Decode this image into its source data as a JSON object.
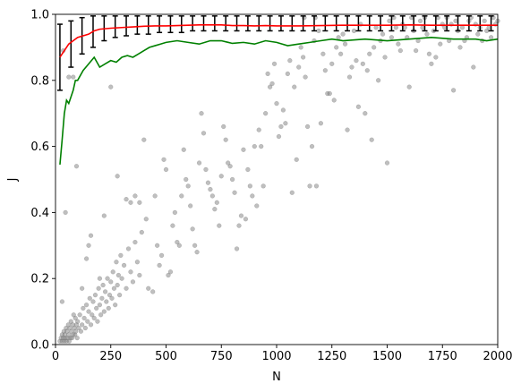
{
  "chart_data": {
    "type": "scatter",
    "xlabel": "N",
    "ylabel": "J",
    "xlim": [
      0,
      2000
    ],
    "ylim": [
      0.0,
      1.0
    ],
    "x_ticks": [
      0,
      250,
      500,
      750,
      1000,
      1250,
      1500,
      1750,
      2000
    ],
    "x_tick_labels": [
      "0",
      "250",
      "500",
      "750",
      "1000",
      "1250",
      "1500",
      "1750",
      "2000"
    ],
    "y_ticks": [
      0.0,
      0.2,
      0.4,
      0.6,
      0.8,
      1.0
    ],
    "y_tick_labels": [
      "0.0",
      "0.2",
      "0.4",
      "0.6",
      "0.8",
      "1.0"
    ],
    "grid": false,
    "colors": {
      "scatter": "#808080",
      "red_line": "#ff0000",
      "green_line": "#008000",
      "error_bars": "#000000"
    },
    "scatter_points": [
      [
        20,
        0.01
      ],
      [
        25,
        0.02
      ],
      [
        30,
        0.01
      ],
      [
        30,
        0.03
      ],
      [
        35,
        0.02
      ],
      [
        38,
        0.04
      ],
      [
        40,
        0.01
      ],
      [
        42,
        0.03
      ],
      [
        45,
        0.02
      ],
      [
        48,
        0.05
      ],
      [
        50,
        0.01
      ],
      [
        52,
        0.04
      ],
      [
        55,
        0.02
      ],
      [
        58,
        0.06
      ],
      [
        60,
        0.03
      ],
      [
        62,
        0.01
      ],
      [
        65,
        0.05
      ],
      [
        68,
        0.02
      ],
      [
        70,
        0.07
      ],
      [
        72,
        0.04
      ],
      [
        75,
        0.02
      ],
      [
        78,
        0.06
      ],
      [
        80,
        0.03
      ],
      [
        82,
        0.09
      ],
      [
        85,
        0.05
      ],
      [
        88,
        0.03
      ],
      [
        90,
        0.08
      ],
      [
        92,
        0.04
      ],
      [
        95,
        0.06
      ],
      [
        98,
        0.02
      ],
      [
        100,
        0.07
      ],
      [
        105,
        0.05
      ],
      [
        110,
        0.09
      ],
      [
        115,
        0.04
      ],
      [
        120,
        0.06
      ],
      [
        125,
        0.11
      ],
      [
        130,
        0.08
      ],
      [
        135,
        0.05
      ],
      [
        140,
        0.12
      ],
      [
        145,
        0.07
      ],
      [
        150,
        0.1
      ],
      [
        155,
        0.14
      ],
      [
        160,
        0.06
      ],
      [
        165,
        0.09
      ],
      [
        170,
        0.13
      ],
      [
        175,
        0.08
      ],
      [
        180,
        0.15
      ],
      [
        185,
        0.11
      ],
      [
        190,
        0.07
      ],
      [
        195,
        0.17
      ],
      [
        200,
        0.12
      ],
      [
        205,
        0.09
      ],
      [
        210,
        0.14
      ],
      [
        215,
        0.18
      ],
      [
        220,
        0.1
      ],
      [
        225,
        0.16
      ],
      [
        230,
        0.13
      ],
      [
        235,
        0.2
      ],
      [
        240,
        0.11
      ],
      [
        245,
        0.15
      ],
      [
        250,
        0.19
      ],
      [
        255,
        0.14
      ],
      [
        260,
        0.22
      ],
      [
        265,
        0.17
      ],
      [
        270,
        0.12
      ],
      [
        275,
        0.25
      ],
      [
        280,
        0.18
      ],
      [
        285,
        0.21
      ],
      [
        290,
        0.15
      ],
      [
        295,
        0.27
      ],
      [
        300,
        0.2
      ],
      [
        310,
        0.24
      ],
      [
        320,
        0.17
      ],
      [
        330,
        0.29
      ],
      [
        340,
        0.22
      ],
      [
        350,
        0.19
      ],
      [
        360,
        0.31
      ],
      [
        370,
        0.25
      ],
      [
        380,
        0.21
      ],
      [
        390,
        0.34
      ],
      [
        30,
        0.13
      ],
      [
        45,
        0.4
      ],
      [
        60,
        0.81
      ],
      [
        35,
        0.89
      ],
      [
        80,
        0.81
      ],
      [
        95,
        0.54
      ],
      [
        120,
        0.17
      ],
      [
        140,
        0.26
      ],
      [
        150,
        0.3
      ],
      [
        160,
        0.33
      ],
      [
        200,
        0.2
      ],
      [
        220,
        0.39
      ],
      [
        250,
        0.78
      ],
      [
        280,
        0.51
      ],
      [
        320,
        0.44
      ],
      [
        340,
        0.43
      ],
      [
        360,
        0.45
      ],
      [
        380,
        0.43
      ],
      [
        400,
        0.62
      ],
      [
        410,
        0.38
      ],
      [
        420,
        0.17
      ],
      [
        440,
        0.16
      ],
      [
        450,
        0.45
      ],
      [
        460,
        0.3
      ],
      [
        470,
        0.24
      ],
      [
        480,
        0.27
      ],
      [
        490,
        0.56
      ],
      [
        500,
        0.53
      ],
      [
        510,
        0.21
      ],
      [
        520,
        0.22
      ],
      [
        530,
        0.36
      ],
      [
        540,
        0.4
      ],
      [
        550,
        0.31
      ],
      [
        560,
        0.3
      ],
      [
        570,
        0.45
      ],
      [
        580,
        0.59
      ],
      [
        590,
        0.5
      ],
      [
        600,
        0.48
      ],
      [
        610,
        0.42
      ],
      [
        620,
        0.35
      ],
      [
        630,
        0.3
      ],
      [
        640,
        0.28
      ],
      [
        650,
        0.55
      ],
      [
        660,
        0.7
      ],
      [
        670,
        0.64
      ],
      [
        680,
        0.53
      ],
      [
        690,
        0.49
      ],
      [
        700,
        0.47
      ],
      [
        710,
        0.45
      ],
      [
        720,
        0.41
      ],
      [
        730,
        0.43
      ],
      [
        740,
        0.36
      ],
      [
        750,
        0.51
      ],
      [
        760,
        0.66
      ],
      [
        770,
        0.62
      ],
      [
        780,
        0.55
      ],
      [
        790,
        0.54
      ],
      [
        800,
        0.5
      ],
      [
        810,
        0.46
      ],
      [
        820,
        0.29
      ],
      [
        830,
        0.36
      ],
      [
        840,
        0.39
      ],
      [
        850,
        0.59
      ],
      [
        860,
        0.38
      ],
      [
        870,
        0.53
      ],
      [
        880,
        0.48
      ],
      [
        890,
        0.45
      ],
      [
        900,
        0.6
      ],
      [
        910,
        0.42
      ],
      [
        920,
        0.65
      ],
      [
        930,
        0.6
      ],
      [
        940,
        0.48
      ],
      [
        950,
        0.7
      ],
      [
        960,
        0.82
      ],
      [
        970,
        0.78
      ],
      [
        980,
        0.79
      ],
      [
        990,
        0.85
      ],
      [
        1000,
        0.73
      ],
      [
        1010,
        0.63
      ],
      [
        1020,
        0.66
      ],
      [
        1030,
        0.71
      ],
      [
        1040,
        0.67
      ],
      [
        1050,
        0.82
      ],
      [
        1060,
        0.86
      ],
      [
        1070,
        0.46
      ],
      [
        1080,
        0.78
      ],
      [
        1090,
        0.56
      ],
      [
        1100,
        0.84
      ],
      [
        1110,
        0.9
      ],
      [
        1120,
        0.87
      ],
      [
        1130,
        0.81
      ],
      [
        1140,
        0.66
      ],
      [
        1150,
        0.48
      ],
      [
        1160,
        0.6
      ],
      [
        1170,
        0.92
      ],
      [
        1180,
        0.48
      ],
      [
        1190,
        0.95
      ],
      [
        1200,
        0.67
      ],
      [
        1210,
        0.88
      ],
      [
        1220,
        0.83
      ],
      [
        1230,
        0.76
      ],
      [
        1240,
        0.76
      ],
      [
        1250,
        0.85
      ],
      [
        1260,
        0.74
      ],
      [
        1270,
        0.9
      ],
      [
        1280,
        0.93
      ],
      [
        1290,
        0.88
      ],
      [
        1300,
        0.94
      ],
      [
        1310,
        0.91
      ],
      [
        1320,
        0.65
      ],
      [
        1330,
        0.81
      ],
      [
        1340,
        0.84
      ],
      [
        1350,
        0.95
      ],
      [
        1360,
        0.86
      ],
      [
        1370,
        0.72
      ],
      [
        1380,
        0.97
      ],
      [
        1390,
        0.85
      ],
      [
        1400,
        0.7
      ],
      [
        1410,
        0.83
      ],
      [
        1420,
        0.88
      ],
      [
        1430,
        0.62
      ],
      [
        1440,
        0.9
      ],
      [
        1450,
        0.96
      ],
      [
        1460,
        0.8
      ],
      [
        1470,
        0.92
      ],
      [
        1480,
        0.94
      ],
      [
        1490,
        0.87
      ],
      [
        1500,
        0.55
      ],
      [
        1510,
        0.98
      ],
      [
        1520,
        0.93
      ],
      [
        1530,
        0.99
      ],
      [
        1540,
        0.96
      ],
      [
        1550,
        0.91
      ],
      [
        1560,
        0.89
      ],
      [
        1570,
        0.97
      ],
      [
        1580,
        0.96
      ],
      [
        1590,
        0.93
      ],
      [
        1600,
        0.78
      ],
      [
        1610,
        0.99
      ],
      [
        1620,
        0.95
      ],
      [
        1630,
        0.89
      ],
      [
        1640,
        0.92
      ],
      [
        1650,
        0.98
      ],
      [
        1660,
        0.96
      ],
      [
        1670,
        0.99
      ],
      [
        1680,
        0.94
      ],
      [
        1690,
        0.88
      ],
      [
        1700,
        0.85
      ],
      [
        1710,
        0.95
      ],
      [
        1720,
        0.87
      ],
      [
        1730,
        0.99
      ],
      [
        1740,
        0.91
      ],
      [
        1750,
        0.97
      ],
      [
        1760,
        0.96
      ],
      [
        1770,
        0.99
      ],
      [
        1780,
        0.92
      ],
      [
        1790,
        0.97
      ],
      [
        1800,
        0.77
      ],
      [
        1810,
        0.98
      ],
      [
        1820,
        0.95
      ],
      [
        1830,
        0.9
      ],
      [
        1840,
        0.96
      ],
      [
        1850,
        0.92
      ],
      [
        1860,
        0.93
      ],
      [
        1870,
        0.98
      ],
      [
        1880,
        0.99
      ],
      [
        1890,
        0.84
      ],
      [
        1900,
        0.97
      ],
      [
        1910,
        0.94
      ],
      [
        1920,
        0.96
      ],
      [
        1930,
        0.92
      ],
      [
        1940,
        0.98
      ],
      [
        1950,
        0.95
      ],
      [
        1960,
        0.96
      ],
      [
        1970,
        0.93
      ],
      [
        1980,
        0.99
      ],
      [
        1990,
        0.97
      ],
      [
        2000,
        0.98
      ],
      [
        1125,
        0.99
      ],
      [
        1175,
        0.99
      ]
    ],
    "red_line": {
      "x": [
        20,
        40,
        60,
        80,
        100,
        125,
        150,
        175,
        200,
        250,
        300,
        350,
        400,
        450,
        500,
        550,
        600,
        650,
        700,
        750,
        800,
        850,
        900,
        950,
        1000,
        1100,
        1200,
        1300,
        1400,
        1500,
        1600,
        1700,
        1800,
        1900,
        2000
      ],
      "y": [
        0.87,
        0.89,
        0.91,
        0.92,
        0.93,
        0.935,
        0.94,
        0.95,
        0.955,
        0.958,
        0.96,
        0.962,
        0.964,
        0.965,
        0.965,
        0.966,
        0.967,
        0.968,
        0.968,
        0.968,
        0.966,
        0.966,
        0.965,
        0.966,
        0.965,
        0.965,
        0.966,
        0.967,
        0.967,
        0.967,
        0.968,
        0.967,
        0.967,
        0.967,
        0.967
      ]
    },
    "green_line": {
      "x": [
        20,
        30,
        40,
        50,
        60,
        70,
        80,
        90,
        100,
        125,
        150,
        175,
        200,
        225,
        250,
        275,
        300,
        325,
        350,
        375,
        400,
        425,
        450,
        475,
        500,
        550,
        600,
        650,
        700,
        750,
        800,
        850,
        900,
        950,
        1000,
        1050,
        1100,
        1150,
        1200,
        1250,
        1300,
        1400,
        1500,
        1600,
        1700,
        1800,
        1900,
        1950,
        2000
      ],
      "y": [
        0.545,
        0.62,
        0.7,
        0.74,
        0.73,
        0.75,
        0.77,
        0.8,
        0.8,
        0.83,
        0.85,
        0.87,
        0.84,
        0.85,
        0.86,
        0.855,
        0.87,
        0.875,
        0.87,
        0.88,
        0.89,
        0.9,
        0.905,
        0.91,
        0.915,
        0.92,
        0.915,
        0.91,
        0.92,
        0.92,
        0.912,
        0.915,
        0.91,
        0.92,
        0.915,
        0.905,
        0.91,
        0.915,
        0.92,
        0.925,
        0.92,
        0.925,
        0.92,
        0.925,
        0.93,
        0.925,
        0.925,
        0.92,
        0.925
      ]
    },
    "error_bars": {
      "x": [
        20,
        70,
        120,
        170,
        220,
        270,
        320,
        370,
        420,
        470,
        520,
        570,
        620,
        670,
        720,
        770,
        820,
        870,
        920,
        970,
        1020,
        1070,
        1120,
        1170,
        1220,
        1270,
        1320,
        1370,
        1420,
        1470,
        1520,
        1570,
        1620,
        1670,
        1720,
        1770,
        1820,
        1870,
        1920,
        1970
      ],
      "center": [
        0.87,
        0.91,
        0.94,
        0.95,
        0.955,
        0.958,
        0.96,
        0.962,
        0.964,
        0.965,
        0.965,
        0.966,
        0.967,
        0.968,
        0.968,
        0.968,
        0.966,
        0.966,
        0.965,
        0.966,
        0.965,
        0.965,
        0.965,
        0.966,
        0.966,
        0.967,
        0.967,
        0.967,
        0.967,
        0.967,
        0.967,
        0.968,
        0.968,
        0.967,
        0.967,
        0.967,
        0.967,
        0.967,
        0.967,
        0.967
      ],
      "lower": [
        0.77,
        0.84,
        0.88,
        0.9,
        0.92,
        0.93,
        0.935,
        0.94,
        0.94,
        0.945,
        0.945,
        0.945,
        0.95,
        0.95,
        0.95,
        0.95,
        0.95,
        0.95,
        0.95,
        0.95,
        0.95,
        0.95,
        0.95,
        0.95,
        0.95,
        0.95,
        0.95,
        0.95,
        0.95,
        0.95,
        0.95,
        0.95,
        0.95,
        0.95,
        0.95,
        0.95,
        0.95,
        0.95,
        0.95,
        0.95
      ],
      "upper": [
        0.97,
        0.98,
        0.99,
        0.995,
        0.995,
        0.995,
        0.995,
        0.995,
        0.995,
        0.995,
        0.995,
        0.995,
        0.995,
        0.995,
        0.995,
        0.995,
        0.995,
        0.995,
        0.995,
        0.995,
        0.995,
        0.995,
        0.995,
        0.995,
        0.995,
        0.995,
        0.995,
        0.995,
        0.995,
        0.995,
        0.995,
        0.995,
        0.995,
        0.995,
        0.995,
        0.995,
        0.995,
        0.995,
        0.995,
        0.995
      ]
    }
  }
}
